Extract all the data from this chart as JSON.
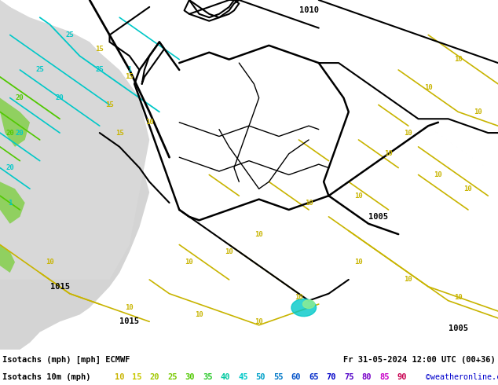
{
  "title_line1": "Isotachs (mph) [mph] ECMWF",
  "title_line2": "Isotachs 10m (mph)",
  "date_str": "Fr 31-05-2024 12:00 UTC (00+36)",
  "credit": "©weatheronline.co.uk",
  "bg_color": "#c8f0a0",
  "gray_color": "#d8d8d8",
  "fig_width": 6.34,
  "fig_height": 4.9,
  "dpi": 100,
  "legend_values": [
    10,
    15,
    20,
    25,
    30,
    35,
    40,
    45,
    50,
    55,
    60,
    65,
    70,
    75,
    80,
    85,
    90
  ],
  "legend_colors": [
    "#c8b400",
    "#c8c800",
    "#a0c800",
    "#78c800",
    "#50c800",
    "#28c828",
    "#00c8a0",
    "#00c8c8",
    "#00a0c8",
    "#0078c8",
    "#0050c8",
    "#0028c8",
    "#0000c8",
    "#5000c8",
    "#7800c8",
    "#c800c8",
    "#c80050"
  ],
  "cyan_color": "#00c8c8",
  "green_color": "#50c800",
  "yellow_color": "#c8b400",
  "black_color": "#000000",
  "pressure_color": "#000000",
  "info_bg": "#ffffff",
  "info_text_color": "#000000",
  "credit_color": "#0000cc"
}
